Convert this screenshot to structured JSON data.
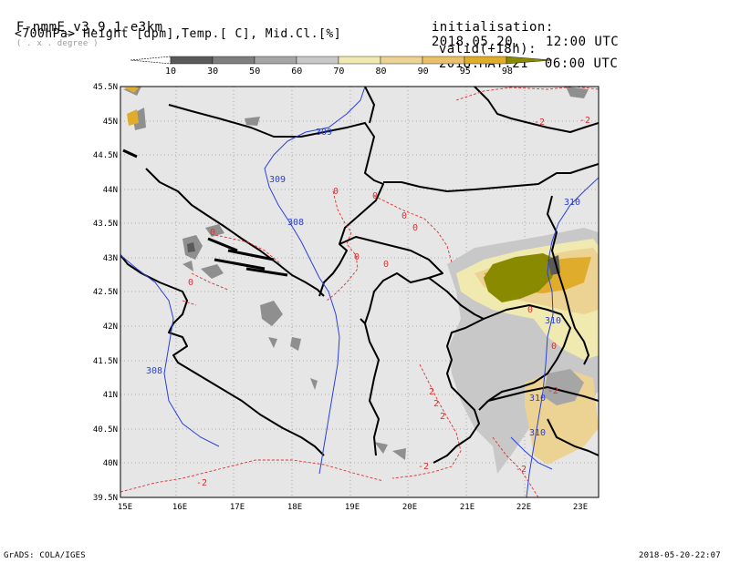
{
  "header": {
    "model": "F-nmmE_v3.9.1-e3km",
    "grid_note": "( . x . degree )",
    "init_label": "initialisation:",
    "init_value": "2018.05.20.   12:00 UTC",
    "subtitle": "<700hPa> Height [dpm],Temp.[ C], Mid.Cl.[%]",
    "valid_label": "valid(+18h):",
    "valid_value": "2018.MAY.21  06:00 UTC"
  },
  "colorbar": {
    "labels": [
      "10",
      "30",
      "50",
      "60",
      "70",
      "80",
      "90",
      "95",
      "98"
    ],
    "colors": [
      "#5a5a5a",
      "#7f7f7f",
      "#a6a6a6",
      "#c8c8c8",
      "#f0eab0",
      "#ecd394",
      "#e8c16a",
      "#e0ac2c",
      "#8a8a00"
    ]
  },
  "map": {
    "lat_labels": [
      "45.5N",
      "45N",
      "44.5N",
      "44N",
      "43.5N",
      "43N",
      "42.5N",
      "42N",
      "41.5N",
      "41N",
      "40.5N",
      "40N",
      "39.5N"
    ],
    "lon_labels": [
      "15E",
      "16E",
      "17E",
      "18E",
      "19E",
      "20E",
      "21E",
      "22E",
      "23E"
    ],
    "height_contour_labels": [
      "309",
      "309",
      "308",
      "308",
      "310",
      "310",
      "310",
      "310"
    ],
    "temp_contour_labels": [
      "0",
      "0",
      "0",
      "0",
      "0",
      "0",
      "0",
      "0",
      "0",
      "-2",
      "-2",
      "2",
      "2",
      "2",
      "-2",
      "-2",
      "-2",
      "-2",
      "0"
    ],
    "colors": {
      "land_bg": "#e6e6e6",
      "height": "#2a40d8",
      "temp": "#e03030",
      "border": "#000000"
    }
  },
  "footer": {
    "left": "GrADS: COLA/IGES",
    "right": "2018-05-20-22:07"
  }
}
